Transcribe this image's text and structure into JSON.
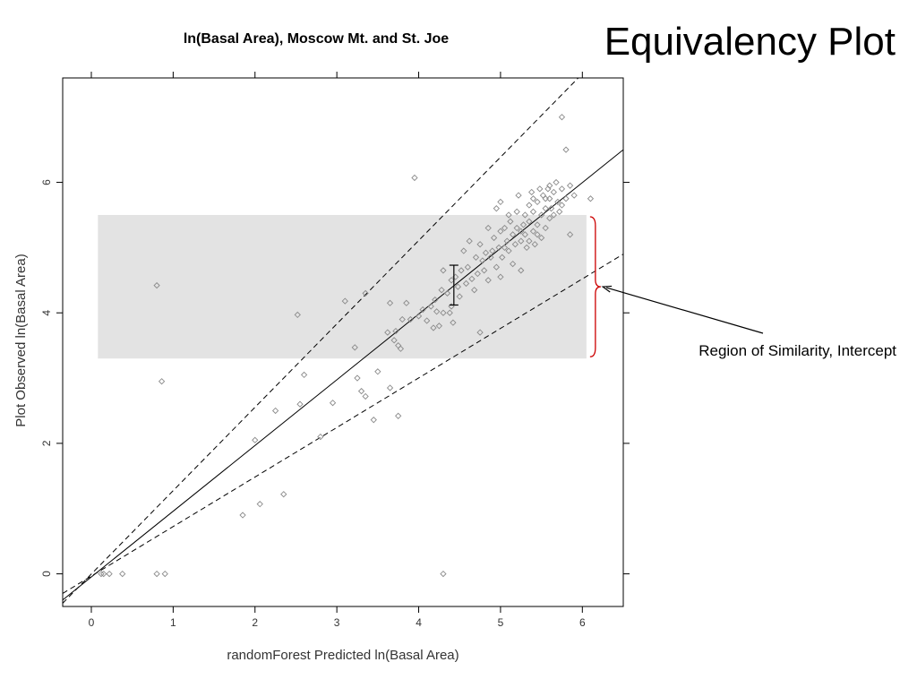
{
  "slide": {
    "title": "Equivalency Plot"
  },
  "colors": {
    "region_fill": "#e3e3e3",
    "brace": "#cc0000",
    "points": "#8a8a8a",
    "lines": "#000000"
  },
  "chart_data": {
    "type": "scatter",
    "title": "ln(Basal Area), Moscow Mt. and St. Joe",
    "xlabel": "randomForest Predicted ln(Basal Area)",
    "ylabel": "Plot Observed ln(Basal Area)",
    "xlim": [
      -0.35,
      6.5
    ],
    "ylim": [
      -0.5,
      7.6
    ],
    "xticks": [
      0,
      1,
      2,
      3,
      4,
      5,
      6
    ],
    "yticks": [
      0,
      2,
      4,
      6
    ],
    "grid": false,
    "region_of_similarity": {
      "x": [
        0.08,
        6.05
      ],
      "y": [
        3.3,
        5.5
      ]
    },
    "intercept_error_bar": {
      "x": 4.43,
      "y_low": 4.12,
      "y_high": 4.73
    },
    "lines": [
      {
        "style": "solid",
        "x": [
          -0.35,
          6.5
        ],
        "y": [
          -0.4,
          6.5
        ]
      },
      {
        "style": "dashed",
        "x": [
          -0.35,
          5.95
        ],
        "y": [
          -0.45,
          7.6
        ]
      },
      {
        "style": "dashed",
        "x": [
          -0.35,
          6.5
        ],
        "y": [
          -0.3,
          4.9
        ]
      }
    ],
    "annotation": {
      "text": "Region of Similarity, Intercept",
      "target": {
        "x": 6.25,
        "y": 4.4
      }
    },
    "points": [
      [
        0.12,
        0.0
      ],
      [
        0.15,
        0.0
      ],
      [
        0.22,
        0.0
      ],
      [
        0.38,
        0.0
      ],
      [
        0.8,
        0.0
      ],
      [
        0.9,
        0.0
      ],
      [
        4.3,
        0.0
      ],
      [
        0.8,
        4.42
      ],
      [
        0.86,
        2.95
      ],
      [
        1.85,
        0.9
      ],
      [
        2.06,
        1.07
      ],
      [
        2.35,
        1.22
      ],
      [
        2.0,
        2.05
      ],
      [
        2.25,
        2.5
      ],
      [
        2.55,
        2.6
      ],
      [
        2.8,
        2.1
      ],
      [
        2.95,
        2.62
      ],
      [
        2.52,
        3.97
      ],
      [
        2.6,
        3.05
      ],
      [
        3.1,
        4.18
      ],
      [
        3.22,
        3.47
      ],
      [
        3.25,
        3.0
      ],
      [
        3.3,
        2.8
      ],
      [
        3.35,
        2.72
      ],
      [
        3.35,
        4.3
      ],
      [
        3.45,
        2.36
      ],
      [
        3.5,
        3.1
      ],
      [
        3.62,
        3.7
      ],
      [
        3.65,
        2.85
      ],
      [
        3.65,
        4.15
      ],
      [
        3.7,
        3.58
      ],
      [
        3.72,
        3.72
      ],
      [
        3.75,
        3.5
      ],
      [
        3.75,
        2.42
      ],
      [
        3.78,
        3.45
      ],
      [
        3.8,
        3.9
      ],
      [
        3.85,
        4.15
      ],
      [
        3.9,
        3.9
      ],
      [
        3.95,
        6.07
      ],
      [
        4.0,
        3.95
      ],
      [
        4.05,
        4.05
      ],
      [
        4.1,
        3.88
      ],
      [
        4.15,
        4.1
      ],
      [
        4.18,
        3.77
      ],
      [
        4.2,
        4.2
      ],
      [
        4.22,
        4.02
      ],
      [
        4.25,
        3.8
      ],
      [
        4.28,
        4.35
      ],
      [
        4.3,
        4.0
      ],
      [
        4.3,
        4.65
      ],
      [
        4.35,
        4.3
      ],
      [
        4.38,
        4.0
      ],
      [
        4.4,
        4.5
      ],
      [
        4.4,
        4.1
      ],
      [
        4.42,
        3.85
      ],
      [
        4.45,
        4.55
      ],
      [
        4.48,
        4.4
      ],
      [
        4.5,
        4.25
      ],
      [
        4.52,
        4.65
      ],
      [
        4.55,
        4.95
      ],
      [
        4.58,
        4.45
      ],
      [
        4.6,
        4.7
      ],
      [
        4.62,
        5.1
      ],
      [
        4.65,
        4.52
      ],
      [
        4.68,
        4.35
      ],
      [
        4.7,
        4.85
      ],
      [
        4.72,
        4.6
      ],
      [
        4.75,
        3.7
      ],
      [
        4.75,
        5.05
      ],
      [
        4.78,
        4.8
      ],
      [
        4.8,
        4.65
      ],
      [
        4.82,
        4.92
      ],
      [
        4.85,
        5.3
      ],
      [
        4.85,
        4.5
      ],
      [
        4.88,
        4.85
      ],
      [
        4.9,
        4.95
      ],
      [
        4.92,
        5.15
      ],
      [
        4.95,
        4.7
      ],
      [
        4.98,
        5.0
      ],
      [
        5.0,
        5.25
      ],
      [
        5.0,
        4.55
      ],
      [
        5.02,
        4.85
      ],
      [
        5.05,
        5.0
      ],
      [
        5.05,
        5.3
      ],
      [
        5.08,
        5.1
      ],
      [
        5.1,
        4.95
      ],
      [
        5.12,
        5.4
      ],
      [
        5.15,
        5.2
      ],
      [
        5.15,
        4.75
      ],
      [
        5.18,
        5.05
      ],
      [
        5.2,
        5.55
      ],
      [
        5.2,
        5.3
      ],
      [
        5.22,
        5.8
      ],
      [
        5.25,
        4.65
      ],
      [
        5.25,
        5.1
      ],
      [
        5.28,
        5.35
      ],
      [
        5.3,
        5.5
      ],
      [
        5.3,
        5.2
      ],
      [
        5.32,
        5.0
      ],
      [
        5.35,
        5.65
      ],
      [
        5.35,
        5.4
      ],
      [
        5.38,
        5.85
      ],
      [
        5.4,
        5.25
      ],
      [
        5.4,
        5.55
      ],
      [
        5.42,
        5.05
      ],
      [
        5.45,
        5.7
      ],
      [
        5.45,
        5.35
      ],
      [
        5.48,
        5.9
      ],
      [
        5.5,
        5.5
      ],
      [
        5.5,
        5.15
      ],
      [
        5.52,
        5.8
      ],
      [
        5.55,
        5.6
      ],
      [
        5.55,
        5.3
      ],
      [
        5.58,
        5.9
      ],
      [
        5.6,
        5.45
      ],
      [
        5.6,
        5.75
      ],
      [
        5.62,
        5.6
      ],
      [
        5.65,
        5.85
      ],
      [
        5.65,
        5.5
      ],
      [
        5.68,
        6.0
      ],
      [
        5.7,
        5.7
      ],
      [
        5.72,
        5.55
      ],
      [
        5.75,
        5.9
      ],
      [
        5.75,
        5.65
      ],
      [
        5.8,
        5.75
      ],
      [
        5.85,
        5.2
      ],
      [
        5.85,
        5.95
      ],
      [
        5.9,
        5.8
      ],
      [
        6.1,
        5.75
      ],
      [
        5.8,
        6.5
      ],
      [
        5.75,
        7.0
      ],
      [
        5.0,
        5.7
      ],
      [
        4.95,
        5.6
      ],
      [
        5.25,
        5.25
      ],
      [
        5.35,
        5.1
      ],
      [
        5.45,
        5.2
      ],
      [
        5.55,
        5.75
      ],
      [
        5.6,
        5.95
      ],
      [
        5.1,
        5.5
      ],
      [
        5.4,
        5.75
      ]
    ]
  }
}
